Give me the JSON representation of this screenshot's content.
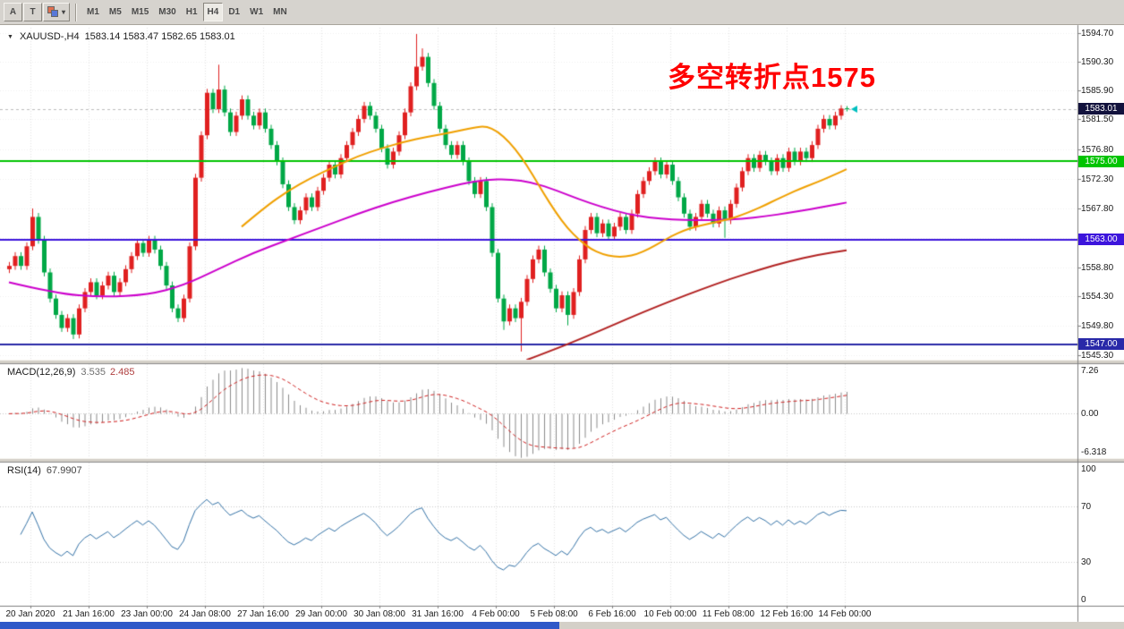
{
  "toolbar": {
    "tool_buttons": [
      {
        "id": "pointer",
        "label": "A"
      },
      {
        "id": "text",
        "label": "T"
      }
    ],
    "periods": [
      "M1",
      "M5",
      "M15",
      "M30",
      "H1",
      "H4",
      "D1",
      "W1",
      "MN"
    ],
    "active_period": "H4"
  },
  "icons": {
    "dropdown_arrow": "▼",
    "caret_down": "▾"
  },
  "window": {
    "symbol_title": "XAUUSD-,H4",
    "ohlc_title": "1583.14 1583.47 1582.65 1583.01"
  },
  "annotation": {
    "text": "多空转折点1575",
    "color": "#FF0000"
  },
  "price_axis": {
    "ticks": [
      "1594.70",
      "1590.30",
      "1585.90",
      "1581.50",
      "1576.80",
      "1572.30",
      "1567.80",
      "1563.30",
      "1558.80",
      "1554.30",
      "1549.80",
      "1545.30"
    ]
  },
  "time_axis": {
    "labels": [
      "20 Jan 2020",
      "21 Jan 16:00",
      "23 Jan 00:00",
      "24 Jan 08:00",
      "27 Jan 16:00",
      "29 Jan 00:00",
      "30 Jan 08:00",
      "31 Jan 16:00",
      "4 Feb 00:00",
      "5 Feb 08:00",
      "6 Feb 16:00",
      "10 Feb 00:00",
      "11 Feb 08:00",
      "12 Feb 16:00",
      "14 Feb 00:00"
    ]
  },
  "price_lines": [
    {
      "label": "1583.01",
      "value": 1583.01,
      "color": "#12123D",
      "style": "bid"
    },
    {
      "label": "1575.00",
      "value": 1575.0,
      "color": "#00C400",
      "style": "solid"
    },
    {
      "label": "1563.00",
      "value": 1563.0,
      "color": "#3C14DC",
      "style": "solid"
    },
    {
      "label": "1547.00",
      "value": 1547.0,
      "color": "#2929A8",
      "style": "solid"
    }
  ],
  "macd_panel": {
    "name": "MACD(12,26,9)",
    "value_main": "3.535",
    "value_signal": "2.485",
    "axis_labels": [
      "7.26",
      "0.00",
      "-6.318"
    ],
    "fast": 12,
    "slow": 26,
    "signal": 9
  },
  "rsi_panel": {
    "name": "RSI(14)",
    "value": "67.9907",
    "axis_labels": [
      "100",
      "70",
      "30",
      "0"
    ],
    "period": 14,
    "levels": [
      70,
      30
    ]
  },
  "colors": {
    "up_candle": "#E02020",
    "down_candle": "#00A846",
    "grid": "#E3E3E3",
    "histogram": "#8C8C8C",
    "macd_signal": "#D02020",
    "rsi_line": "#3674A8",
    "bid_line": "#BBBBBB",
    "price_marker": "#00BFBF",
    "toolbar_bg": "#D6D3CE",
    "footer_blue": "#2E58C8"
  },
  "chart_data": {
    "type": "candlestick",
    "symbol": "XAUUSD",
    "timeframe": "H4",
    "price_range": [
      1545.3,
      1594.7
    ],
    "current": {
      "open": 1583.14,
      "high": 1583.47,
      "low": 1582.65,
      "close": 1583.01
    },
    "candles": [
      [
        1558.5,
        1559.6,
        1557.9,
        1559.0
      ],
      [
        1559.0,
        1561.1,
        1558.4,
        1560.5
      ],
      [
        1560.5,
        1561.1,
        1558.4,
        1559.0
      ],
      [
        1559.0,
        1562.6,
        1558.4,
        1562.0
      ],
      [
        1562.0,
        1567.8,
        1561.4,
        1566.5
      ],
      [
        1566.5,
        1567.1,
        1562.4,
        1563.0
      ],
      [
        1563.0,
        1563.6,
        1557.4,
        1558.0
      ],
      [
        1558.0,
        1558.6,
        1553.4,
        1554.0
      ],
      [
        1554.0,
        1554.6,
        1550.9,
        1551.5
      ],
      [
        1551.5,
        1552.1,
        1548.9,
        1549.5
      ],
      [
        1549.5,
        1551.6,
        1548.9,
        1551.0
      ],
      [
        1551.0,
        1551.6,
        1547.8,
        1548.5
      ],
      [
        1548.5,
        1553.1,
        1547.9,
        1552.5
      ],
      [
        1552.5,
        1555.6,
        1551.9,
        1555.0
      ],
      [
        1555.0,
        1557.1,
        1554.4,
        1556.5
      ],
      [
        1556.5,
        1557.1,
        1553.9,
        1554.5
      ],
      [
        1554.5,
        1556.6,
        1553.9,
        1556.0
      ],
      [
        1556.0,
        1558.1,
        1555.4,
        1557.5
      ],
      [
        1557.5,
        1558.1,
        1554.4,
        1555.0
      ],
      [
        1555.0,
        1557.1,
        1554.4,
        1556.5
      ],
      [
        1556.5,
        1559.1,
        1555.9,
        1558.5
      ],
      [
        1558.5,
        1561.1,
        1557.9,
        1560.5
      ],
      [
        1560.5,
        1563.1,
        1559.9,
        1562.5
      ],
      [
        1562.5,
        1563.1,
        1560.4,
        1561.0
      ],
      [
        1561.0,
        1563.6,
        1560.4,
        1563.0
      ],
      [
        1563.0,
        1563.6,
        1560.9,
        1561.5
      ],
      [
        1561.5,
        1562.1,
        1558.4,
        1559.0
      ],
      [
        1559.0,
        1559.6,
        1555.4,
        1556.0
      ],
      [
        1556.0,
        1556.6,
        1551.9,
        1552.5
      ],
      [
        1552.5,
        1553.1,
        1550.4,
        1551.0
      ],
      [
        1551.0,
        1554.6,
        1550.4,
        1554.0
      ],
      [
        1554.0,
        1562.6,
        1553.4,
        1562.0
      ],
      [
        1562.0,
        1573.1,
        1561.4,
        1572.5
      ],
      [
        1572.5,
        1579.6,
        1571.9,
        1579.0
      ],
      [
        1579.0,
        1586.1,
        1578.4,
        1585.5
      ],
      [
        1585.5,
        1586.1,
        1582.4,
        1583.0
      ],
      [
        1583.0,
        1589.8,
        1582.4,
        1586.0
      ],
      [
        1586.0,
        1586.6,
        1581.9,
        1582.5
      ],
      [
        1582.5,
        1583.1,
        1578.9,
        1579.5
      ],
      [
        1579.5,
        1582.6,
        1578.9,
        1582.0
      ],
      [
        1582.0,
        1585.1,
        1581.4,
        1584.5
      ],
      [
        1584.5,
        1585.1,
        1581.4,
        1582.0
      ],
      [
        1582.0,
        1582.6,
        1579.9,
        1580.5
      ],
      [
        1580.5,
        1583.1,
        1579.9,
        1582.5
      ],
      [
        1582.5,
        1583.1,
        1579.4,
        1580.0
      ],
      [
        1580.0,
        1580.6,
        1576.9,
        1577.5
      ],
      [
        1577.5,
        1578.1,
        1574.4,
        1575.0
      ],
      [
        1575.0,
        1575.6,
        1570.9,
        1571.5
      ],
      [
        1571.5,
        1572.1,
        1567.4,
        1568.0
      ],
      [
        1568.0,
        1568.6,
        1565.4,
        1566.0
      ],
      [
        1566.0,
        1568.1,
        1565.4,
        1567.5
      ],
      [
        1567.5,
        1570.1,
        1566.9,
        1569.5
      ],
      [
        1569.5,
        1570.1,
        1567.4,
        1568.0
      ],
      [
        1568.0,
        1571.1,
        1567.4,
        1570.5
      ],
      [
        1570.5,
        1573.1,
        1569.9,
        1572.5
      ],
      [
        1572.5,
        1575.1,
        1571.9,
        1574.5
      ],
      [
        1574.5,
        1575.1,
        1572.4,
        1573.0
      ],
      [
        1573.0,
        1576.1,
        1572.4,
        1575.5
      ],
      [
        1575.5,
        1578.1,
        1574.9,
        1577.5
      ],
      [
        1577.5,
        1580.1,
        1576.9,
        1579.5
      ],
      [
        1579.5,
        1582.1,
        1578.9,
        1581.5
      ],
      [
        1581.5,
        1584.1,
        1580.9,
        1583.5
      ],
      [
        1583.5,
        1584.1,
        1581.4,
        1582.0
      ],
      [
        1582.0,
        1582.6,
        1579.4,
        1580.0
      ],
      [
        1580.0,
        1580.6,
        1576.4,
        1577.0
      ],
      [
        1577.0,
        1577.6,
        1573.9,
        1574.5
      ],
      [
        1574.5,
        1577.1,
        1573.9,
        1576.5
      ],
      [
        1576.5,
        1579.6,
        1575.9,
        1579.0
      ],
      [
        1579.0,
        1583.1,
        1578.4,
        1582.5
      ],
      [
        1582.5,
        1587.1,
        1581.9,
        1586.5
      ],
      [
        1586.5,
        1594.5,
        1585.9,
        1589.5
      ],
      [
        1589.5,
        1592.3,
        1588.9,
        1591.0
      ],
      [
        1591.0,
        1591.6,
        1586.4,
        1587.0
      ],
      [
        1587.0,
        1587.6,
        1582.9,
        1583.5
      ],
      [
        1583.5,
        1584.1,
        1579.4,
        1580.0
      ],
      [
        1580.0,
        1580.6,
        1576.9,
        1577.5
      ],
      [
        1577.5,
        1578.1,
        1575.4,
        1576.0
      ],
      [
        1576.0,
        1578.1,
        1575.4,
        1577.5
      ],
      [
        1577.5,
        1578.1,
        1574.4,
        1575.0
      ],
      [
        1575.0,
        1575.6,
        1571.4,
        1572.0
      ],
      [
        1572.0,
        1572.6,
        1569.4,
        1570.0
      ],
      [
        1570.0,
        1572.6,
        1569.4,
        1572.0
      ],
      [
        1572.0,
        1572.6,
        1567.4,
        1568.0
      ],
      [
        1568.0,
        1568.6,
        1560.4,
        1561.0
      ],
      [
        1561.0,
        1561.6,
        1553.4,
        1554.0
      ],
      [
        1554.0,
        1554.6,
        1549.2,
        1550.5
      ],
      [
        1550.5,
        1553.1,
        1549.9,
        1552.5
      ],
      [
        1552.5,
        1553.1,
        1550.4,
        1551.0
      ],
      [
        1551.0,
        1554.1,
        1545.9,
        1553.5
      ],
      [
        1553.5,
        1557.6,
        1552.9,
        1557.0
      ],
      [
        1557.0,
        1560.6,
        1556.4,
        1560.0
      ],
      [
        1560.0,
        1562.1,
        1559.4,
        1561.5
      ],
      [
        1561.5,
        1562.1,
        1557.4,
        1558.0
      ],
      [
        1558.0,
        1558.6,
        1554.9,
        1555.5
      ],
      [
        1555.5,
        1556.1,
        1551.9,
        1552.5
      ],
      [
        1552.5,
        1555.1,
        1551.9,
        1554.5
      ],
      [
        1554.5,
        1555.1,
        1549.9,
        1551.5
      ],
      [
        1551.5,
        1555.6,
        1550.9,
        1555.0
      ],
      [
        1555.0,
        1560.6,
        1554.4,
        1560.0
      ],
      [
        1560.0,
        1565.1,
        1559.4,
        1564.5
      ],
      [
        1564.5,
        1567.1,
        1563.9,
        1566.5
      ],
      [
        1566.5,
        1567.1,
        1563.4,
        1564.0
      ],
      [
        1564.0,
        1566.1,
        1563.4,
        1565.5
      ],
      [
        1565.5,
        1566.1,
        1562.9,
        1563.5
      ],
      [
        1563.5,
        1565.6,
        1562.9,
        1565.0
      ],
      [
        1565.0,
        1567.1,
        1564.4,
        1566.5
      ],
      [
        1566.5,
        1567.1,
        1563.9,
        1564.5
      ],
      [
        1564.5,
        1567.6,
        1563.9,
        1567.0
      ],
      [
        1567.0,
        1570.6,
        1566.4,
        1570.0
      ],
      [
        1570.0,
        1572.6,
        1569.4,
        1572.0
      ],
      [
        1572.0,
        1574.1,
        1571.4,
        1573.5
      ],
      [
        1573.5,
        1575.6,
        1572.9,
        1575.0
      ],
      [
        1575.0,
        1575.6,
        1572.4,
        1573.0
      ],
      [
        1573.0,
        1575.1,
        1572.4,
        1574.5
      ],
      [
        1574.5,
        1575.1,
        1571.4,
        1572.0
      ],
      [
        1572.0,
        1572.6,
        1568.9,
        1569.5
      ],
      [
        1569.5,
        1570.1,
        1566.4,
        1567.0
      ],
      [
        1567.0,
        1567.6,
        1564.4,
        1565.0
      ],
      [
        1565.0,
        1567.1,
        1564.4,
        1566.5
      ],
      [
        1566.5,
        1569.1,
        1565.9,
        1568.5
      ],
      [
        1568.5,
        1569.1,
        1566.4,
        1567.0
      ],
      [
        1567.0,
        1567.6,
        1564.9,
        1565.5
      ],
      [
        1565.5,
        1568.1,
        1564.9,
        1567.5
      ],
      [
        1567.5,
        1568.1,
        1563.3,
        1566.0
      ],
      [
        1566.0,
        1569.1,
        1565.4,
        1568.5
      ],
      [
        1568.5,
        1571.6,
        1567.9,
        1571.0
      ],
      [
        1571.0,
        1574.1,
        1570.4,
        1573.5
      ],
      [
        1573.5,
        1576.1,
        1572.9,
        1575.5
      ],
      [
        1575.5,
        1576.1,
        1573.4,
        1574.0
      ],
      [
        1574.0,
        1576.6,
        1573.4,
        1576.0
      ],
      [
        1576.0,
        1576.6,
        1574.4,
        1575.0
      ],
      [
        1575.0,
        1575.6,
        1572.9,
        1573.5
      ],
      [
        1573.5,
        1576.1,
        1572.9,
        1575.5
      ],
      [
        1575.5,
        1576.1,
        1573.4,
        1574.0
      ],
      [
        1574.0,
        1577.1,
        1573.4,
        1576.5
      ],
      [
        1576.5,
        1577.1,
        1574.4,
        1575.0
      ],
      [
        1575.0,
        1577.1,
        1574.4,
        1576.5
      ],
      [
        1576.5,
        1577.1,
        1574.9,
        1575.5
      ],
      [
        1575.5,
        1578.1,
        1574.9,
        1577.5
      ],
      [
        1577.5,
        1580.6,
        1576.9,
        1580.0
      ],
      [
        1580.0,
        1582.1,
        1579.4,
        1581.5
      ],
      [
        1581.5,
        1582.1,
        1579.9,
        1580.5
      ],
      [
        1580.5,
        1582.6,
        1579.9,
        1582.0
      ],
      [
        1582.0,
        1583.6,
        1581.4,
        1583.1
      ],
      [
        1583.14,
        1583.47,
        1582.65,
        1583.01
      ]
    ],
    "moving_averages": [
      {
        "name": "ma-mid-magenta",
        "color": "#CC00CC",
        "width": 2,
        "points": [
          [
            0,
            1556.5
          ],
          [
            8,
            1554.8
          ],
          [
            16,
            1554.2
          ],
          [
            24,
            1554.6
          ],
          [
            30,
            1556.0
          ],
          [
            36,
            1558.5
          ],
          [
            42,
            1561.0
          ],
          [
            48,
            1563.0
          ],
          [
            54,
            1565.0
          ],
          [
            60,
            1567.0
          ],
          [
            66,
            1568.8
          ],
          [
            72,
            1570.3
          ],
          [
            78,
            1571.6
          ],
          [
            82,
            1572.2
          ],
          [
            86,
            1572.3
          ],
          [
            90,
            1571.8
          ],
          [
            94,
            1570.6
          ],
          [
            98,
            1569.2
          ],
          [
            102,
            1568.0
          ],
          [
            106,
            1567.0
          ],
          [
            110,
            1566.4
          ],
          [
            114,
            1566.1
          ],
          [
            118,
            1566.0
          ],
          [
            122,
            1566.0
          ],
          [
            126,
            1566.2
          ],
          [
            130,
            1566.6
          ],
          [
            134,
            1567.1
          ],
          [
            138,
            1567.7
          ],
          [
            141,
            1568.2
          ],
          [
            144,
            1568.7
          ]
        ]
      },
      {
        "name": "ma-fast-orange",
        "color": "#F0A000",
        "width": 2,
        "points": [
          [
            40,
            1565.0
          ],
          [
            44,
            1568.0
          ],
          [
            48,
            1570.5
          ],
          [
            52,
            1572.5
          ],
          [
            56,
            1574.2
          ],
          [
            60,
            1575.8
          ],
          [
            64,
            1577.0
          ],
          [
            68,
            1578.0
          ],
          [
            72,
            1578.8
          ],
          [
            76,
            1579.4
          ],
          [
            80,
            1580.2
          ],
          [
            82,
            1580.4
          ],
          [
            84,
            1579.6
          ],
          [
            86,
            1578.0
          ],
          [
            88,
            1575.8
          ],
          [
            90,
            1573.0
          ],
          [
            92,
            1570.0
          ],
          [
            94,
            1567.2
          ],
          [
            96,
            1564.8
          ],
          [
            98,
            1563.0
          ],
          [
            100,
            1561.6
          ],
          [
            102,
            1560.8
          ],
          [
            104,
            1560.4
          ],
          [
            106,
            1560.4
          ],
          [
            108,
            1560.8
          ],
          [
            110,
            1561.6
          ],
          [
            112,
            1562.6
          ],
          [
            114,
            1563.6
          ],
          [
            116,
            1564.4
          ],
          [
            118,
            1565.0
          ],
          [
            120,
            1565.4
          ],
          [
            122,
            1565.8
          ],
          [
            124,
            1566.2
          ],
          [
            126,
            1566.8
          ],
          [
            128,
            1567.5
          ],
          [
            130,
            1568.3
          ],
          [
            132,
            1569.2
          ],
          [
            134,
            1570.0
          ],
          [
            136,
            1570.8
          ],
          [
            138,
            1571.5
          ],
          [
            140,
            1572.2
          ],
          [
            142,
            1573.0
          ],
          [
            144,
            1573.8
          ]
        ]
      },
      {
        "name": "ma-slow-darkred",
        "color": "#B22222",
        "width": 2,
        "points": [
          [
            89,
            1544.6
          ],
          [
            94,
            1546.3
          ],
          [
            99,
            1548.1
          ],
          [
            104,
            1550.0
          ],
          [
            109,
            1551.9
          ],
          [
            114,
            1553.7
          ],
          [
            119,
            1555.4
          ],
          [
            124,
            1557.0
          ],
          [
            129,
            1558.4
          ],
          [
            134,
            1559.7
          ],
          [
            139,
            1560.7
          ],
          [
            144,
            1561.4
          ]
        ]
      }
    ]
  }
}
